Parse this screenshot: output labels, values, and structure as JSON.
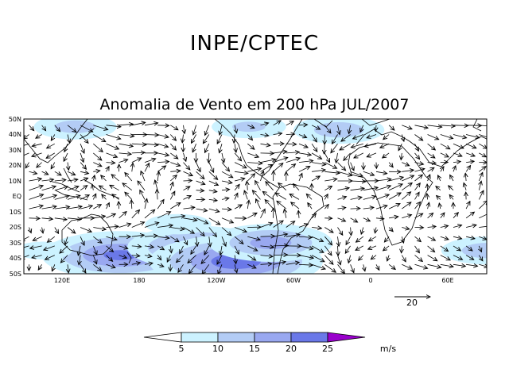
{
  "header": {
    "agency": "INPE/CPTEC",
    "title": "Anomalia de Vento em 200 hPa JUL/2007"
  },
  "map": {
    "lat_labels": [
      "50N",
      "40N",
      "30N",
      "20N",
      "10N",
      "EQ",
      "10S",
      "20S",
      "30S",
      "40S",
      "50S"
    ],
    "lon_labels": [
      "120E",
      "180",
      "120W",
      "60W",
      "0",
      "60E"
    ],
    "reference_vector": {
      "label": "20",
      "speed": 20
    },
    "colors": {
      "background": "#ffffff",
      "coast": "#000000",
      "arrow": "#000000"
    }
  },
  "chart_data": {
    "type": "heatmap",
    "title": "Anomalia de Vento em 200 hPa JUL/2007",
    "variable": "wind anomaly (vectors + speed shading)",
    "level": "200 hPa",
    "period": "JUL/2007",
    "lat_range": [
      -50,
      50
    ],
    "lon_range": [
      80,
      440
    ],
    "reference_speed": 20,
    "colorbar": {
      "ticks": [
        5,
        10,
        15,
        20,
        25
      ],
      "units": "m/s",
      "colors": [
        "#ffffff",
        "#ccf2ff",
        "#b3ccf5",
        "#99a8f0",
        "#6a78e8",
        "#9900cc"
      ]
    },
    "speed_regions": [
      {
        "lon": 155,
        "lat": -38,
        "speed": 20
      },
      {
        "lon": 215,
        "lat": -33,
        "speed": 18
      },
      {
        "lon": 245,
        "lat": -42,
        "speed": 22
      },
      {
        "lon": 272,
        "lat": -30,
        "speed": 16
      },
      {
        "lon": 120,
        "lat": 45,
        "speed": 11
      },
      {
        "lon": 255,
        "lat": 45,
        "speed": 10
      },
      {
        "lon": 325,
        "lat": 43,
        "speed": 12
      },
      {
        "lon": 440,
        "lat": -35,
        "speed": 12
      },
      {
        "lon": 200,
        "lat": -18,
        "speed": 9
      },
      {
        "lon": 95,
        "lat": -35,
        "speed": 8
      }
    ]
  }
}
